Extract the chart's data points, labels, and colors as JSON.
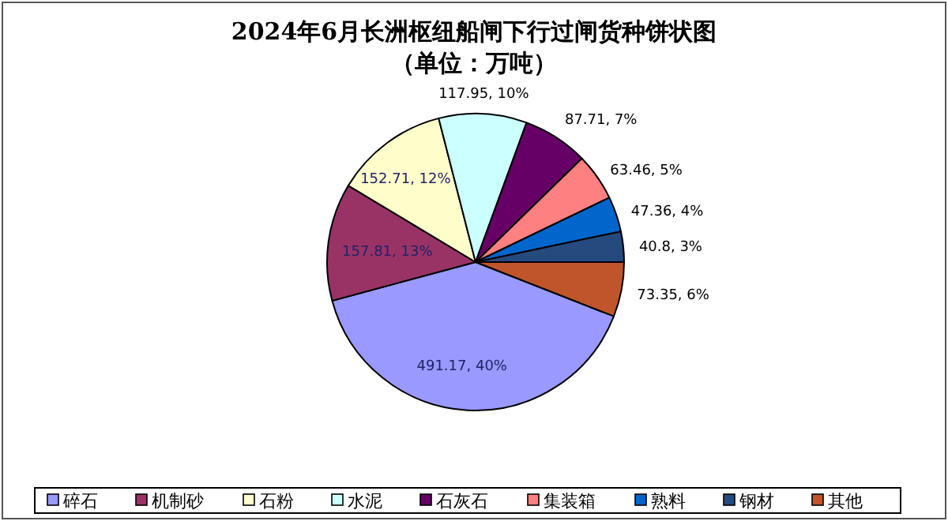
{
  "chart_data": {
    "type": "pie",
    "title": "2024年6月长洲枢纽船闸下行过闸货种饼状图",
    "subtitle": "（单位：万吨）",
    "categories": [
      "碎石",
      "机制砂",
      "石粉",
      "水泥",
      "石灰石",
      "集装箱",
      "熟料",
      "钢材",
      "其他"
    ],
    "values": [
      491.17,
      157.81,
      152.71,
      117.95,
      87.71,
      63.46,
      47.36,
      40.8,
      73.35
    ],
    "value_labels": [
      "491.17, 40%",
      "157.81, 13%",
      "152.71, 12%",
      "117.95, 10%",
      "87.71, 7%",
      "63.46, 5%",
      "47.36, 4%",
      "40.8, 3%",
      "73.35, 6%"
    ],
    "colors": [
      "#9999ff",
      "#993366",
      "#ffffcc",
      "#ccffff",
      "#660066",
      "#ff8080",
      "#0066cc",
      "#254a7e",
      "#c0552b"
    ],
    "legend": "bottom"
  }
}
